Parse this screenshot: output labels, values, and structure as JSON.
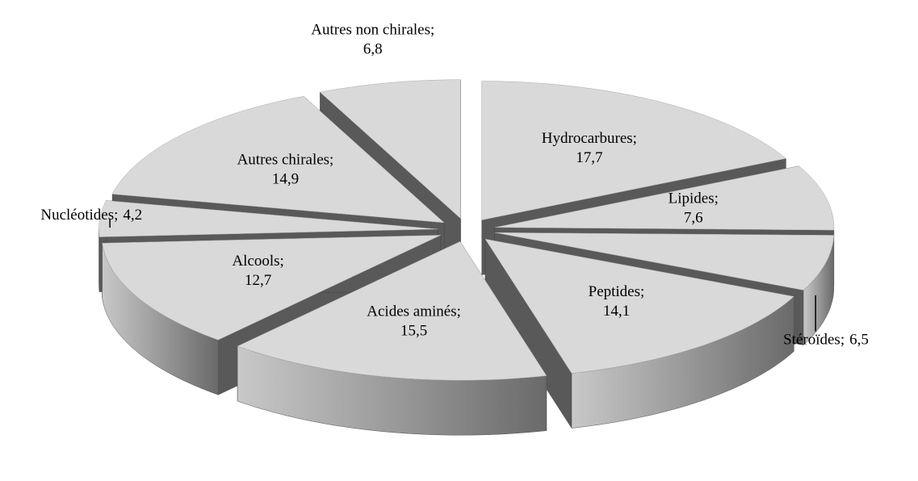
{
  "chart_data": {
    "type": "pie3d",
    "categories": [
      "Hydrocarbures;",
      "Lipides;",
      "Stéroïdes;",
      "Peptides;",
      "Acides aminés;",
      "Alcools;",
      "Nucléotides;",
      "Autres chirales;",
      "Autres non chirales;"
    ],
    "values": [
      17.7,
      7.6,
      6.5,
      14.1,
      15.5,
      12.7,
      4.2,
      14.9,
      6.8
    ],
    "value_labels": [
      "17,7",
      "7,6",
      "6,5",
      "14,1",
      "15,5",
      "12,7",
      "4,2",
      "14,9",
      "6,8"
    ],
    "color": "#d9d9d9"
  }
}
